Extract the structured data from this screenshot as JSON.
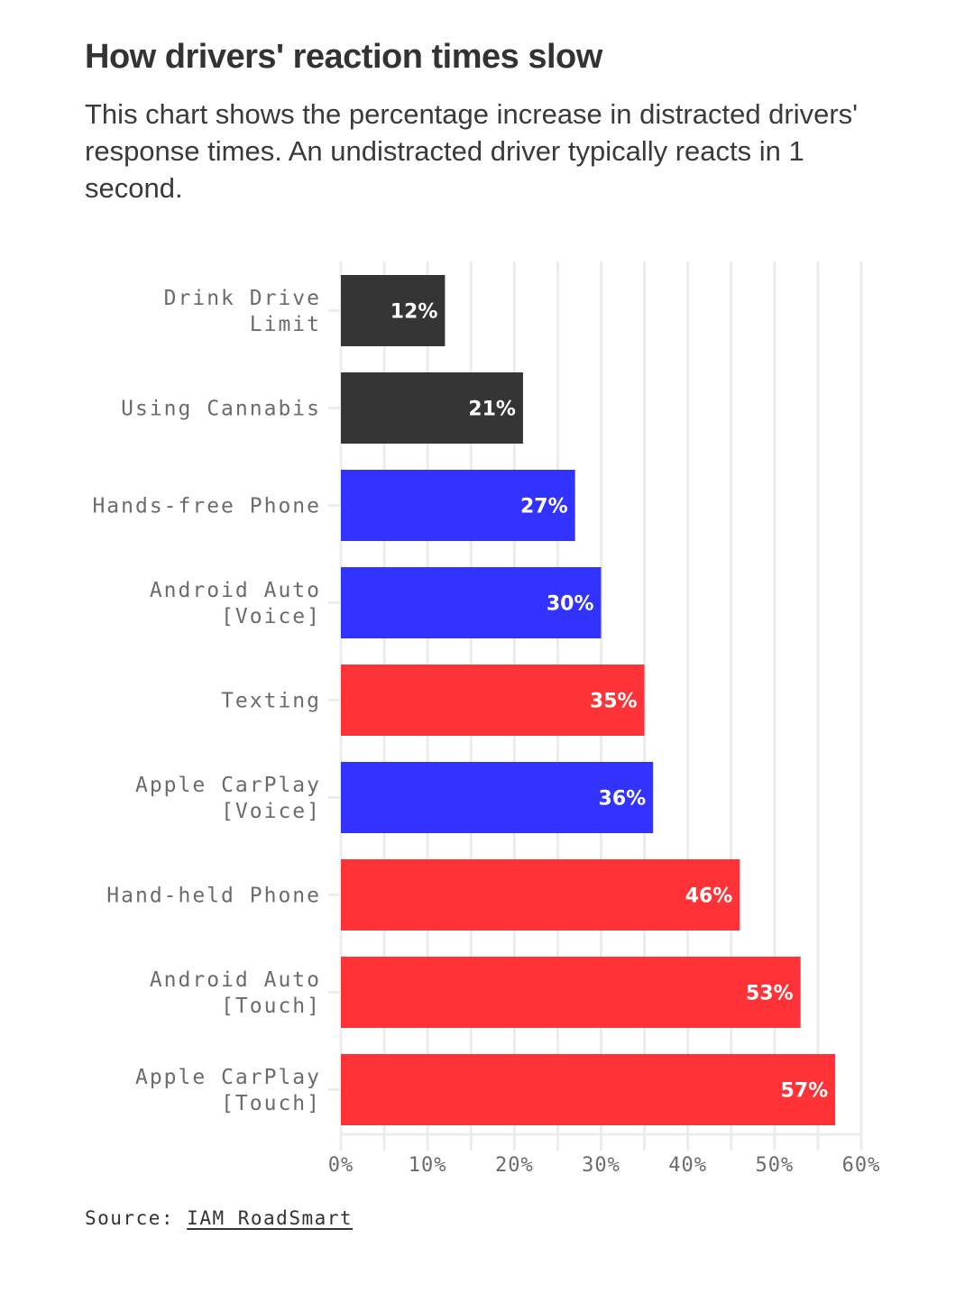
{
  "header": {
    "title": "How drivers' reaction times slow",
    "subtitle": "This chart shows the percentage increase in distracted drivers' response times. An undistracted driver typically reacts in 1 second."
  },
  "source": {
    "label": "Source:",
    "link_text": "IAM RoadSmart"
  },
  "colors": {
    "impaired": "#2d2d2d",
    "voice": "#2b2bff",
    "manual": "#ff2b2f",
    "grid": "#ececec",
    "text": "#6b6b6b"
  },
  "chart_data": {
    "type": "bar",
    "orientation": "horizontal",
    "title": "How drivers' reaction times slow",
    "subtitle": "This chart shows the percentage increase in distracted drivers' response times. An undistracted driver typically reacts in 1 second.",
    "xlabel": "",
    "ylabel": "",
    "xlim": [
      0,
      60
    ],
    "x_ticks": [
      0,
      10,
      20,
      30,
      40,
      50,
      60
    ],
    "x_tick_labels": [
      "0%",
      "10%",
      "20%",
      "30%",
      "40%",
      "50%",
      "60%"
    ],
    "minor_grid_step": 5,
    "grid": true,
    "legend": "none",
    "categories": [
      [
        "Drink Drive",
        "Limit"
      ],
      [
        "Using Cannabis"
      ],
      [
        "Hands-free Phone"
      ],
      [
        "Android Auto",
        "[Voice]"
      ],
      [
        "Texting"
      ],
      [
        "Apple CarPlay",
        "[Voice]"
      ],
      [
        "Hand-held Phone"
      ],
      [
        "Android Auto",
        "[Touch]"
      ],
      [
        "Apple CarPlay",
        "[Touch]"
      ]
    ],
    "values": [
      12,
      21,
      27,
      30,
      35,
      36,
      46,
      53,
      57
    ],
    "value_labels": [
      "12%",
      "21%",
      "27%",
      "30%",
      "35%",
      "36%",
      "46%",
      "53%",
      "57%"
    ],
    "groups": [
      "impaired",
      "impaired",
      "voice",
      "voice",
      "manual",
      "voice",
      "manual",
      "manual",
      "manual"
    ]
  }
}
